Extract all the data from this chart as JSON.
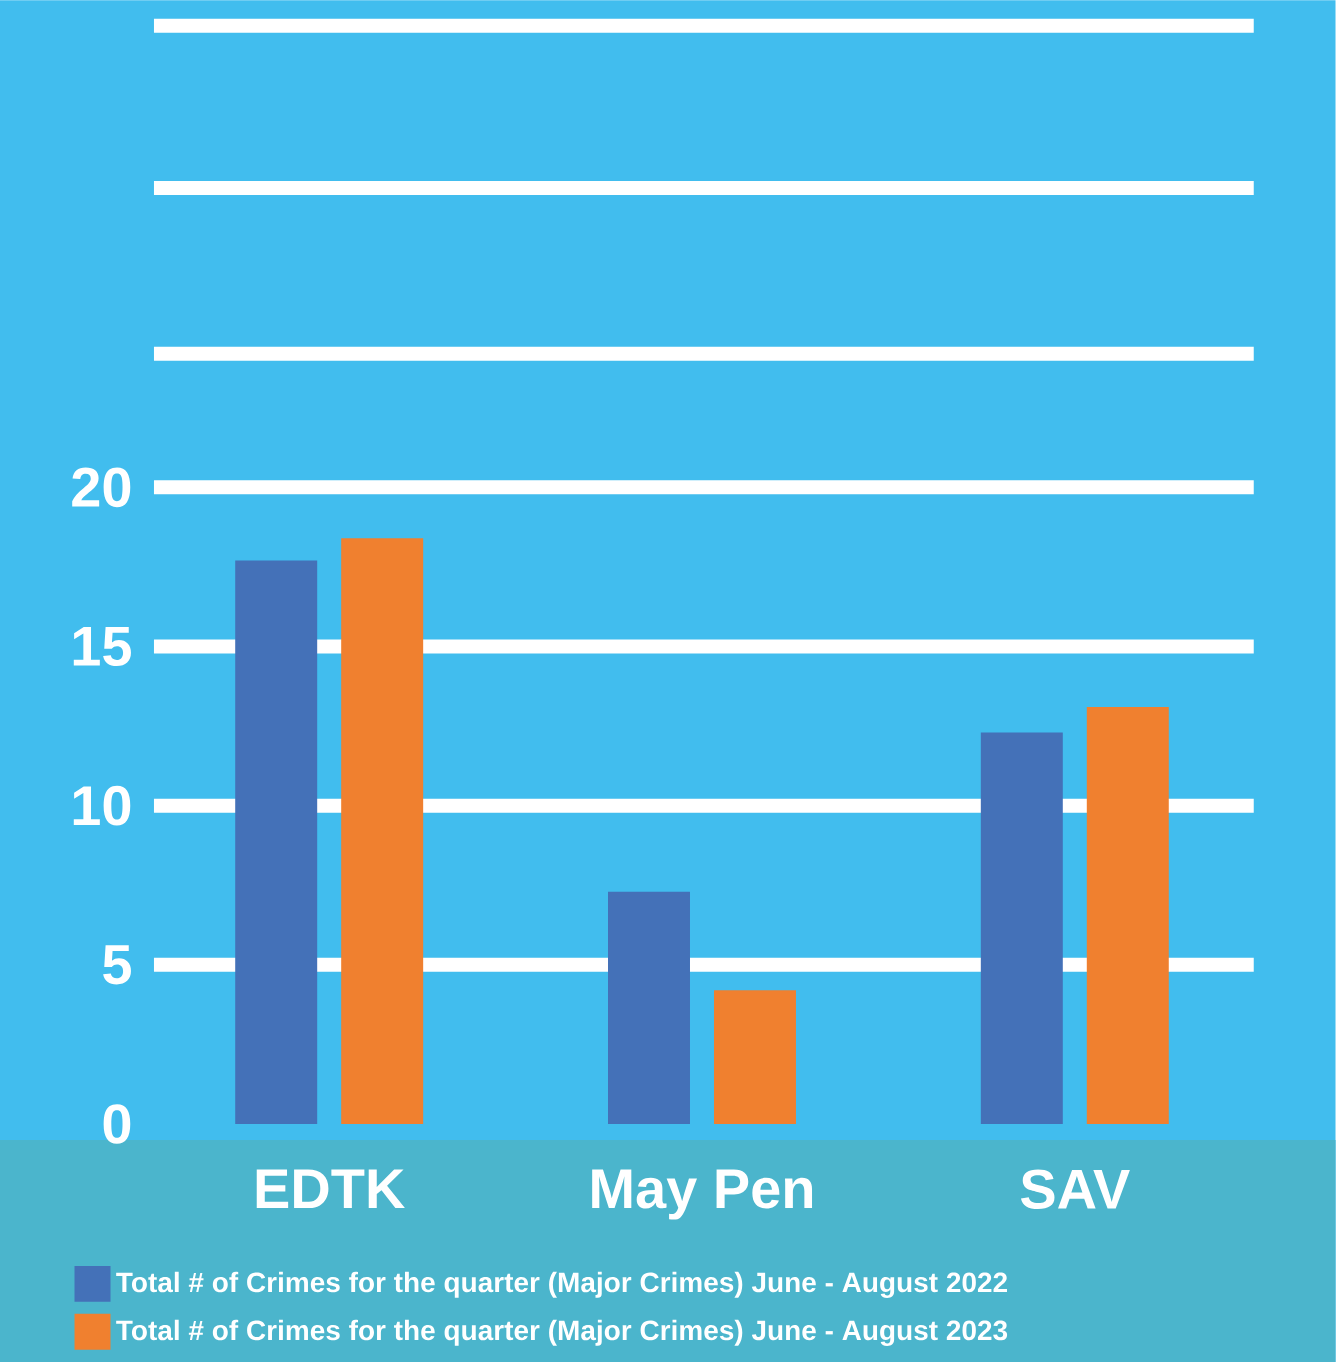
{
  "chart_data": {
    "type": "bar",
    "categories": [
      "EDTK",
      "May Pen",
      "SAV"
    ],
    "series": [
      {
        "name": "Total # of Crimes for the quarter (Major Crimes) June - August 2022",
        "color": "#4471b8",
        "values": [
          17.7,
          7.3,
          12.3
        ]
      },
      {
        "name": "Total # of Crimes for the quarter (Major Crimes) June - August 2023",
        "color": "#f0802f",
        "values": [
          18.4,
          4.2,
          13.1
        ]
      }
    ],
    "ylim": [
      0,
      35.3
    ],
    "yticks": [
      0,
      5,
      10,
      15,
      20,
      {
        "value": 24.2,
        "label": null
      },
      {
        "value": 29.4,
        "label": null
      },
      {
        "value": 34.5,
        "label": null
      }
    ],
    "grid": "y",
    "legend": "bottom"
  }
}
